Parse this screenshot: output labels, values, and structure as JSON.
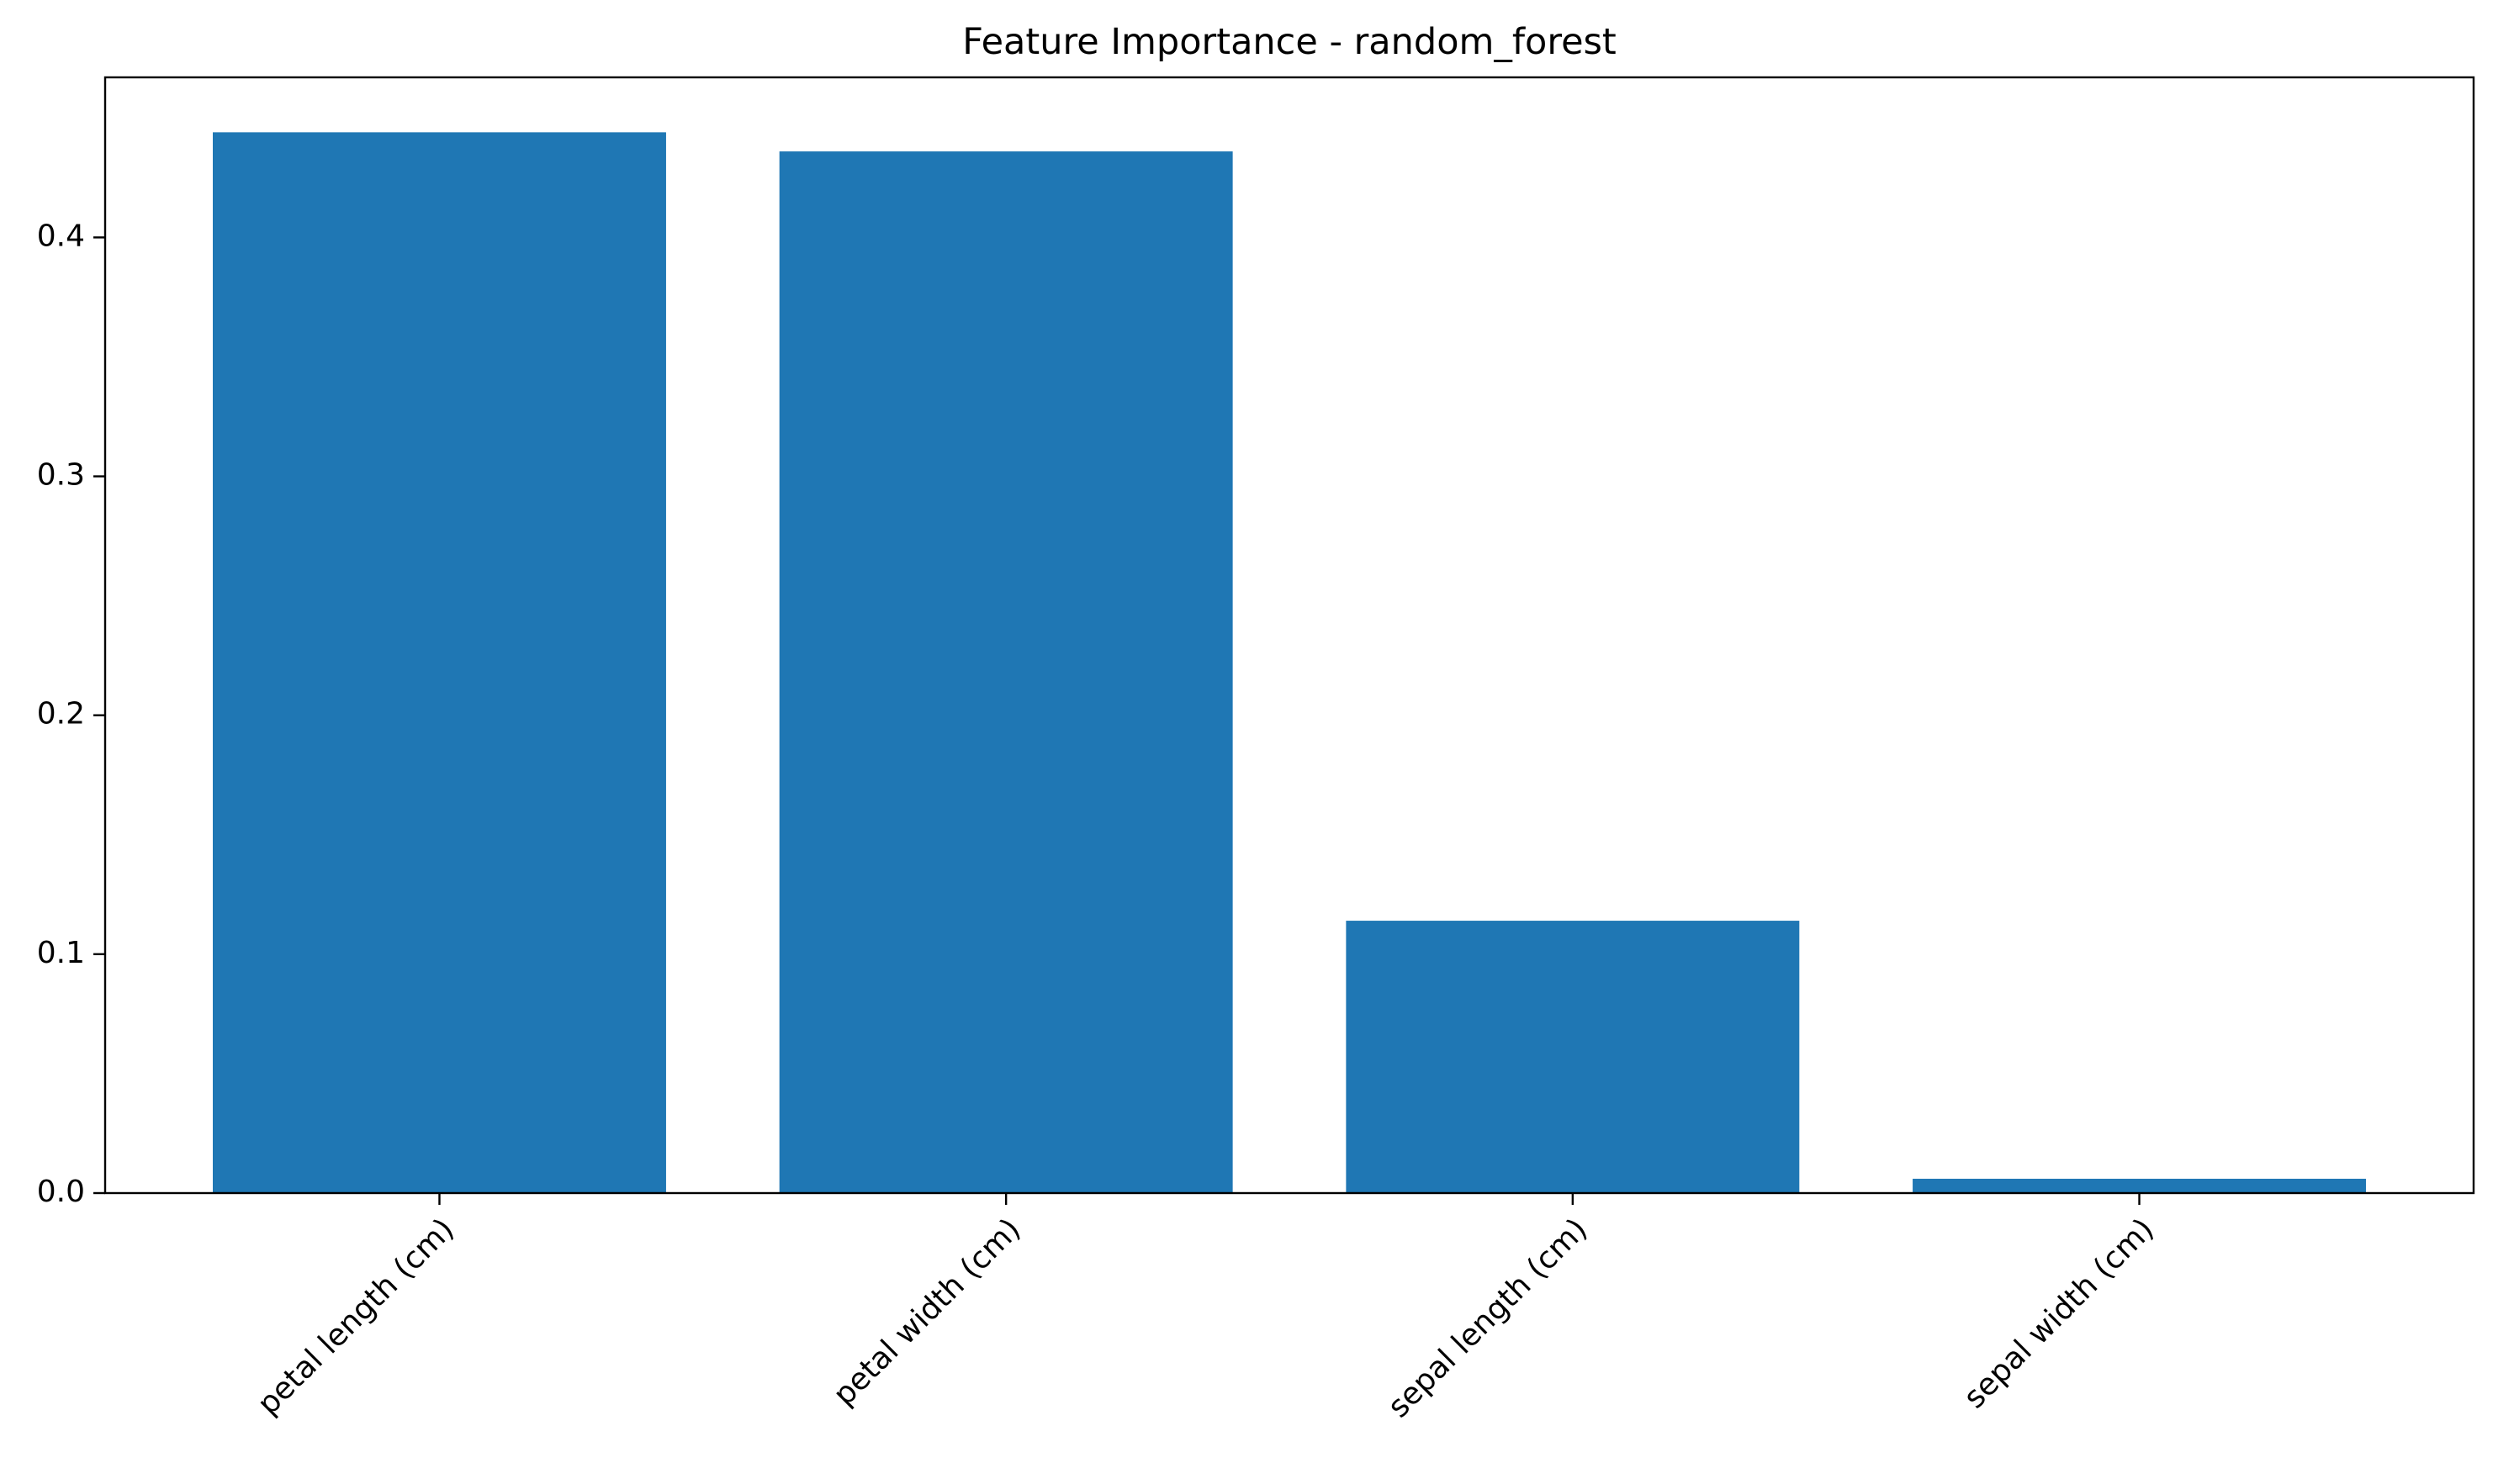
{
  "chart_data": {
    "type": "bar",
    "title": "Feature Importance - random_forest",
    "xlabel": "",
    "ylabel": "",
    "categories": [
      "petal length (cm)",
      "petal width (cm)",
      "sepal length (cm)",
      "sepal width (cm)"
    ],
    "values": [
      0.444,
      0.436,
      0.114,
      0.006
    ],
    "ylim": [
      0,
      0.467
    ],
    "yticks": [
      0.0,
      0.1,
      0.2,
      0.3,
      0.4
    ],
    "ytick_labels": [
      "0.0",
      "0.1",
      "0.2",
      "0.3",
      "0.4"
    ],
    "bar_color": "#1f77b4",
    "grid": false,
    "legend": "none"
  }
}
